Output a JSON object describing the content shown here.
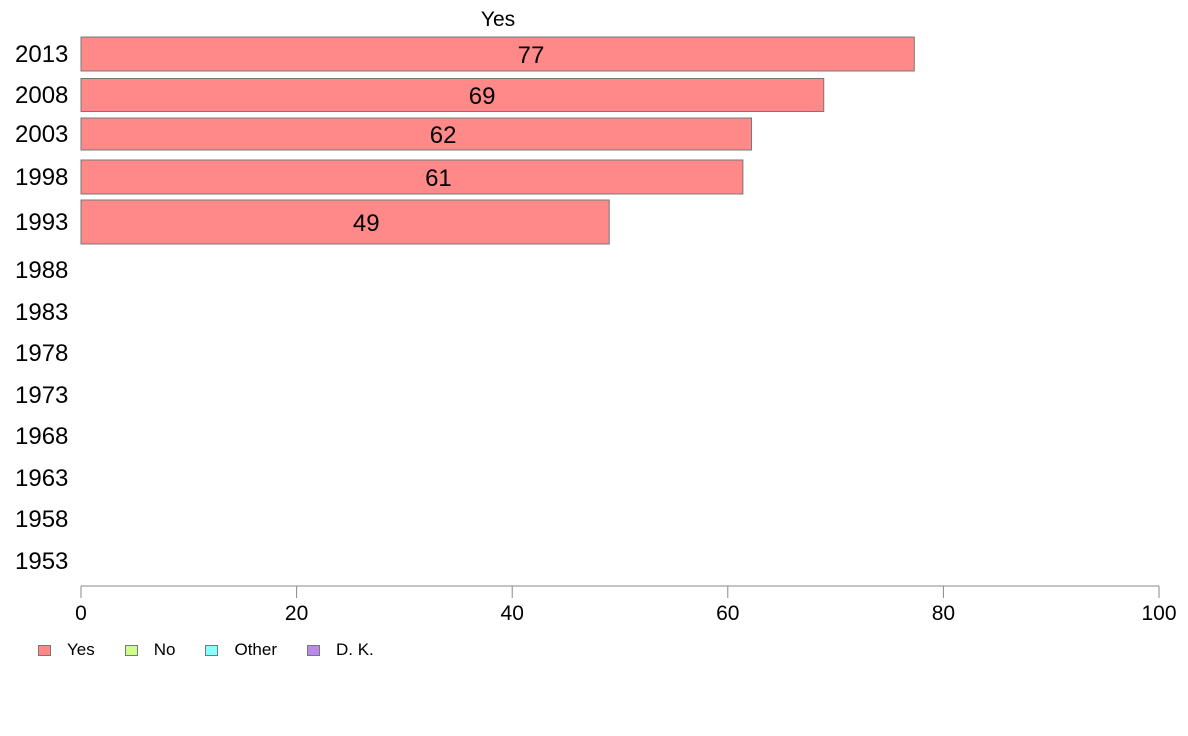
{
  "chart_data": {
    "type": "bar",
    "orientation": "horizontal",
    "title": "Yes",
    "categories": [
      "2013",
      "2008",
      "2003",
      "1998",
      "1993",
      "1988",
      "1983",
      "1978",
      "1973",
      "1968",
      "1963",
      "1958",
      "1953"
    ],
    "series": [
      {
        "name": "Yes",
        "color": "#ff8888",
        "values": [
          77.3,
          68.9,
          62.2,
          61.4,
          49.0,
          null,
          null,
          null,
          null,
          null,
          null,
          null,
          null
        ]
      }
    ],
    "data_labels": [
      "77",
      "69",
      "62",
      "61",
      "49",
      "",
      "",
      "",
      "",
      "",
      "",
      "",
      ""
    ],
    "xlim": [
      0,
      100
    ],
    "xticks": [
      0,
      20,
      40,
      60,
      80,
      100
    ],
    "grid": false,
    "legend_position": "bottom-left"
  },
  "legend": {
    "items": [
      {
        "label": "Yes",
        "color": "#ff8888"
      },
      {
        "label": "No",
        "color": "#ccff88"
      },
      {
        "label": "Other",
        "color": "#88ffff"
      },
      {
        "label": "D. K.",
        "color": "#bb88ee"
      }
    ]
  }
}
